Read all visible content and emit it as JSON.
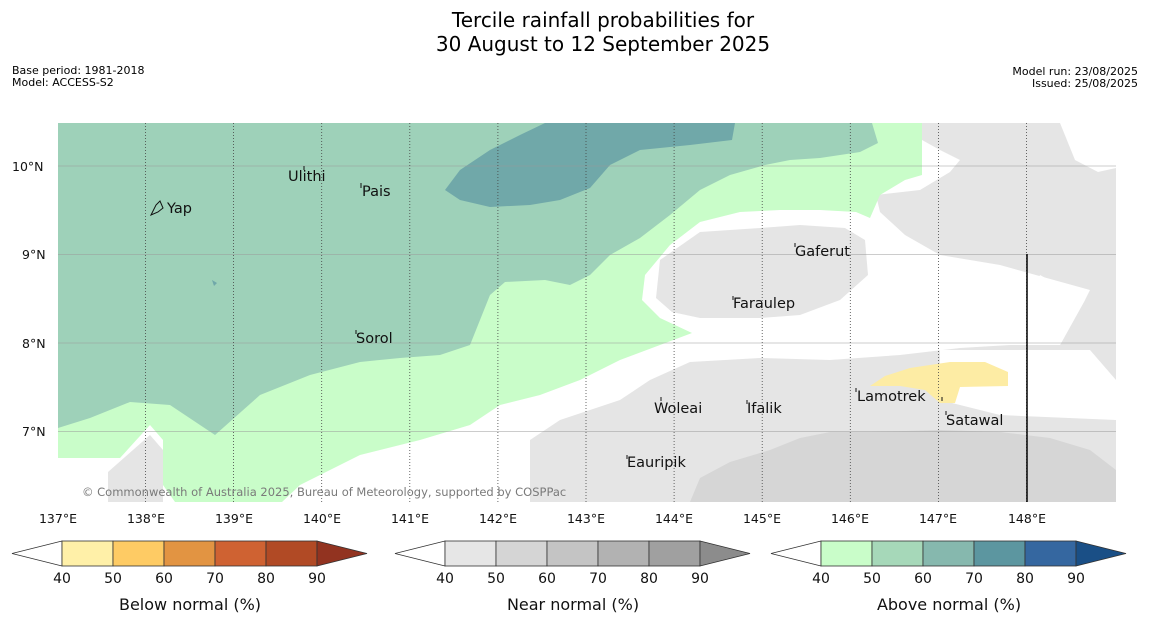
{
  "title_line1": "Tercile rainfall probabilities for",
  "title_line2": "30 August to 12 September 2025",
  "meta_left": [
    "Base period: 1981-2018",
    "Model: ACCESS-S2"
  ],
  "meta_right": [
    "Model run: 23/08/2025",
    "Issued: 25/08/2025"
  ],
  "credit": "© Commonwealth of Australia 2025, Bureau of Meteorology, supported by COSPPac",
  "lat_labels": [
    "10°N",
    "9°N",
    "8°N",
    "7°N"
  ],
  "lon_labels": [
    "137°E",
    "138°E",
    "139°E",
    "140°E",
    "141°E",
    "142°E",
    "143°E",
    "144°E",
    "145°E",
    "146°E",
    "147°E",
    "148°E"
  ],
  "places": [
    "Yap",
    "Ulithi",
    "Pais",
    "Sorol",
    "Gaferut",
    "Faraulep",
    "Woleai",
    "Ifalik",
    "Lamotrek",
    "Satawal",
    "Eauripik"
  ],
  "colorbars": [
    {
      "label": "Below normal (%)",
      "colors": [
        "#fff0a8",
        "#fecb64",
        "#e29442",
        "#cf6232",
        "#b14a25",
        "#923320"
      ]
    },
    {
      "label": "Near normal (%)",
      "colors": [
        "#e6e6e6",
        "#d5d5d5",
        "#c4c4c4",
        "#b2b2b2",
        "#a0a0a0",
        "#8c8c8c"
      ]
    },
    {
      "label": "Above normal (%)",
      "colors": [
        "#c9fdc9",
        "#a6d8b9",
        "#86b8ae",
        "#5c96a0",
        "#3567a0",
        "#1a4f86"
      ]
    }
  ],
  "colorbar_ticks": [
    "40",
    "50",
    "60",
    "70",
    "80",
    "90"
  ]
}
